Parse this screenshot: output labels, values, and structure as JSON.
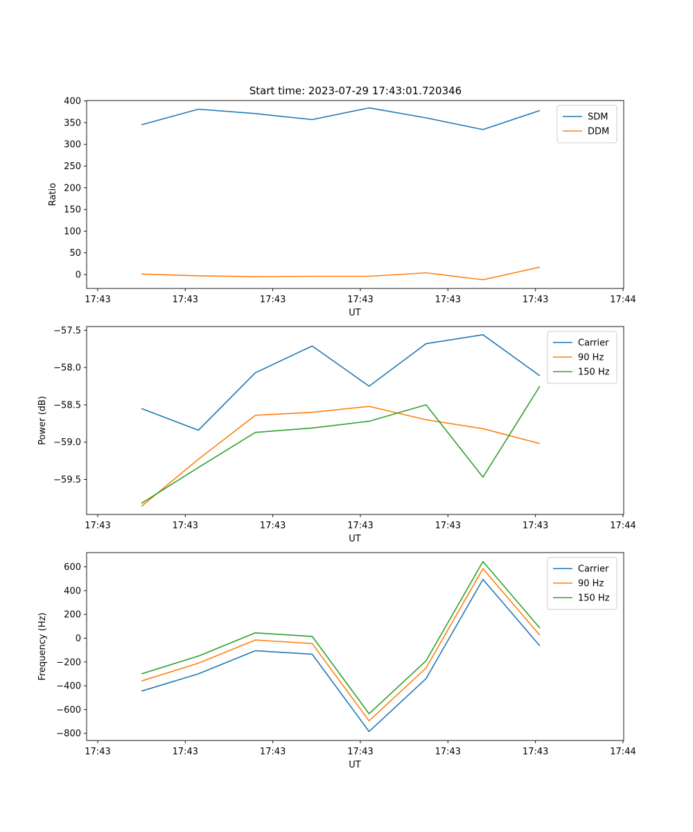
{
  "figure": {
    "title": "Start time: 2023-07-29 17:43:01.720346"
  },
  "chart_data": [
    {
      "type": "line",
      "ylabel": "Ratio",
      "xlabel": "UT",
      "xlim": [
        0,
        6
      ],
      "ylim": [
        -32,
        401
      ],
      "x_ticks": [
        0,
        1,
        2,
        3,
        4,
        5,
        6
      ],
      "x_tick_labels": [
        "17:43",
        "17:43",
        "17:43",
        "17:43",
        "17:43",
        "17:43",
        "17:44"
      ],
      "y_ticks": [
        0,
        50,
        100,
        150,
        200,
        250,
        300,
        350,
        400
      ],
      "y_tick_labels": [
        "0",
        "50",
        "100",
        "150",
        "200",
        "250",
        "300",
        "350",
        "400"
      ],
      "x": [
        0.5,
        1.15,
        1.8,
        2.45,
        3.1,
        3.75,
        4.4,
        5.05
      ],
      "series": [
        {
          "name": "SDM",
          "color": "#1f77b4",
          "values": [
            345,
            381,
            371,
            357,
            384,
            361,
            334,
            378
          ]
        },
        {
          "name": "DDM",
          "color": "#ff7f0e",
          "values": [
            1,
            -3,
            -5,
            -4,
            -4,
            4,
            -12,
            17
          ]
        }
      ],
      "legend": "top-right",
      "grid": false
    },
    {
      "type": "line",
      "ylabel": "Power (dB)",
      "xlabel": "UT",
      "xlim": [
        0,
        6
      ],
      "ylim": [
        -59.97,
        -57.45
      ],
      "x_ticks": [
        0,
        1,
        2,
        3,
        4,
        5,
        6
      ],
      "x_tick_labels": [
        "17:43",
        "17:43",
        "17:43",
        "17:43",
        "17:43",
        "17:43",
        "17:44"
      ],
      "y_ticks": [
        -59.5,
        -59.0,
        -58.5,
        -58.0,
        -57.5
      ],
      "y_tick_labels": [
        "−59.5",
        "−59.0",
        "−58.5",
        "−58.0",
        "−57.5"
      ],
      "x": [
        0.5,
        1.15,
        1.8,
        2.45,
        3.1,
        3.75,
        4.4,
        5.05
      ],
      "series": [
        {
          "name": "Carrier",
          "color": "#1f77b4",
          "values": [
            -58.55,
            -58.84,
            -58.07,
            -57.71,
            -58.25,
            -57.68,
            -57.56,
            -58.11
          ]
        },
        {
          "name": "90 Hz",
          "color": "#ff7f0e",
          "values": [
            -59.86,
            -59.23,
            -58.64,
            -58.6,
            -58.52,
            -58.7,
            -58.82,
            -59.02
          ]
        },
        {
          "name": "150 Hz",
          "color": "#2ca02c",
          "values": [
            -59.82,
            -59.34,
            -58.87,
            -58.81,
            -58.72,
            -58.5,
            -59.47,
            -58.25
          ]
        }
      ],
      "legend": "top-right",
      "grid": false
    },
    {
      "type": "line",
      "ylabel": "Frequency (Hz)",
      "xlabel": "UT",
      "xlim": [
        0,
        6
      ],
      "ylim": [
        -860,
        720
      ],
      "x_ticks": [
        0,
        1,
        2,
        3,
        4,
        5,
        6
      ],
      "x_tick_labels": [
        "17:43",
        "17:43",
        "17:43",
        "17:43",
        "17:43",
        "17:43",
        "17:44"
      ],
      "y_ticks": [
        -800,
        -600,
        -400,
        -200,
        0,
        200,
        400,
        600
      ],
      "y_tick_labels": [
        "−800",
        "−600",
        "−400",
        "−200",
        "0",
        "200",
        "400",
        "600"
      ],
      "x": [
        0.5,
        1.15,
        1.8,
        2.45,
        3.1,
        3.75,
        4.4,
        5.05
      ],
      "series": [
        {
          "name": "Carrier",
          "color": "#1f77b4",
          "values": [
            -445,
            -300,
            -105,
            -135,
            -785,
            -340,
            495,
            -65
          ]
        },
        {
          "name": "90 Hz",
          "color": "#ff7f0e",
          "values": [
            -360,
            -210,
            -15,
            -45,
            -695,
            -250,
            585,
            25
          ]
        },
        {
          "name": "150 Hz",
          "color": "#2ca02c",
          "values": [
            -300,
            -150,
            45,
            15,
            -635,
            -190,
            645,
            85
          ]
        }
      ],
      "legend": "top-right",
      "grid": false
    }
  ]
}
